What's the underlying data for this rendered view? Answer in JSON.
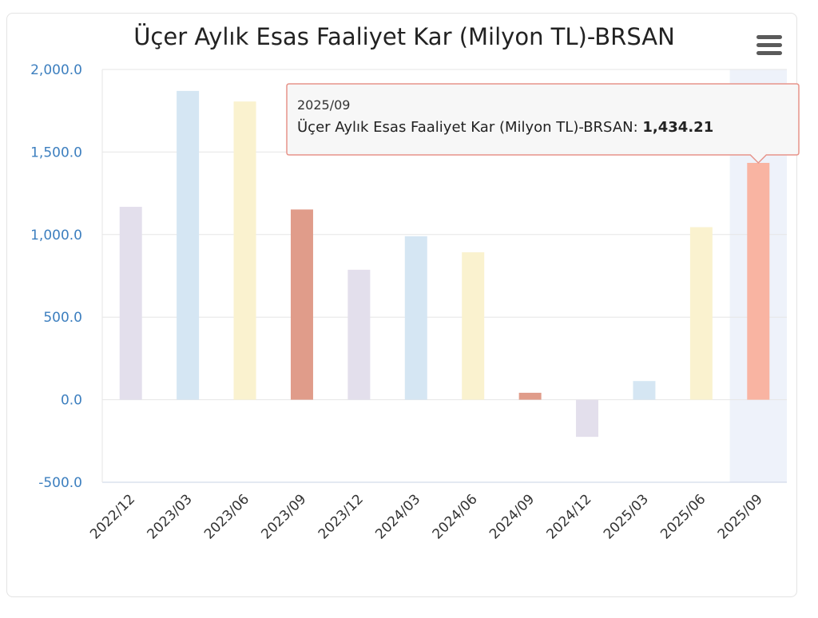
{
  "menu_icon": "hamburger-menu-icon",
  "chart_data": {
    "type": "bar",
    "title": "Üçer Aylık Esas Faaliyet Kar (Milyon TL)-BRSAN",
    "xlabel": "",
    "ylabel": "",
    "categories": [
      "2022/12",
      "2023/03",
      "2023/06",
      "2023/09",
      "2023/12",
      "2024/03",
      "2024/06",
      "2024/09",
      "2024/12",
      "2025/03",
      "2025/06",
      "2025/09"
    ],
    "series": [
      {
        "name": "Üçer Aylık Esas Faaliyet Kar (Milyon TL)-BRSAN",
        "values": [
          1168,
          1870,
          1806,
          1152,
          787,
          990,
          893,
          42,
          -225,
          113,
          1045,
          1434.21
        ]
      }
    ],
    "bar_colors": [
      "#e3dfec",
      "#d5e6f3",
      "#faf2cf",
      "#e09c8a",
      "#e3dfec",
      "#d5e6f3",
      "#faf2cf",
      "#e09c8a",
      "#e3dfec",
      "#d5e6f3",
      "#faf2cf",
      "#f9b4a2"
    ],
    "ylim": [
      -500,
      2000
    ],
    "yticks": [
      "-500.0",
      "0.0",
      "500.0",
      "1,000.0",
      "1,500.0",
      "2,000.0"
    ],
    "grid": true,
    "highlighted_category": "2025/09",
    "tooltip": {
      "date": "2025/09",
      "label": "Üçer Aylık Esas Faaliyet Kar (Milyon TL)-BRSAN: ",
      "value": "1,434.21",
      "border_color": "#e7948a"
    }
  }
}
